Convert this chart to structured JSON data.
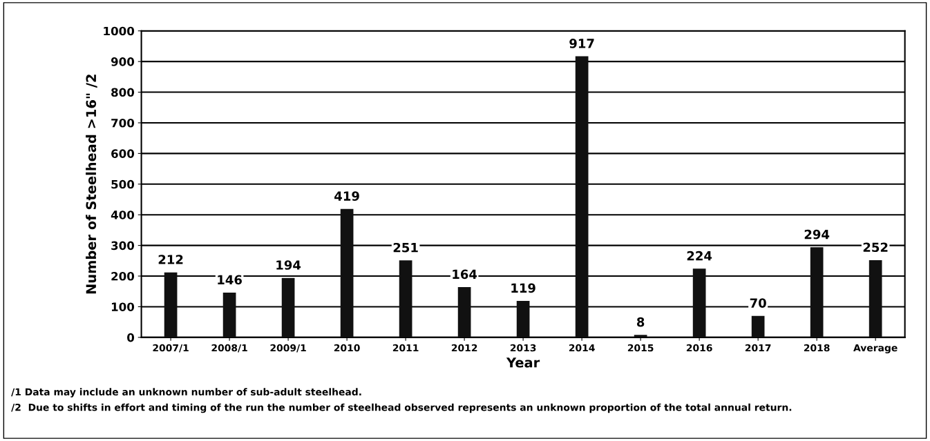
{
  "chart_data": {
    "type": "bar",
    "xlabel": "Year",
    "ylabel": "Number of Steelhead >16\" /2",
    "categories": [
      "2007/1",
      "2008/1",
      "2009/1",
      "2010",
      "2011",
      "2012",
      "2013",
      "2014",
      "2015",
      "2016",
      "2017",
      "2018",
      "Average"
    ],
    "values": [
      212,
      146,
      194,
      419,
      251,
      164,
      119,
      917,
      8,
      224,
      70,
      294,
      252
    ],
    "color": "#111111",
    "ylim": [
      0,
      1000
    ],
    "yticks": [
      0,
      100,
      200,
      300,
      400,
      500,
      600,
      700,
      800,
      900,
      1000
    ],
    "grid": "y",
    "data_labels": true,
    "annotations": [
      "/1 Data may include an unknown number of sub-adult steelhead.",
      "/2  Due to shifts in effort and timing of the run the number of steelhead observed represents an unknown proportion of the total annual return."
    ]
  }
}
